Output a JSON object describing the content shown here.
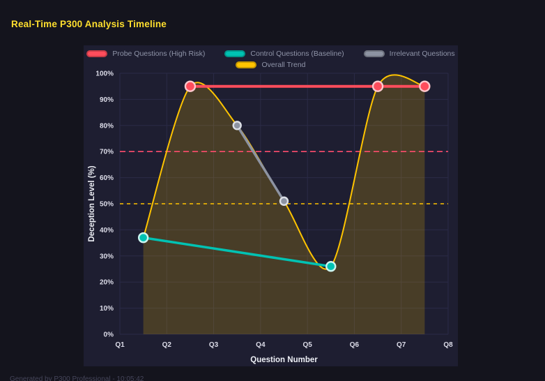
{
  "page": {
    "title": "Real-Time P300 Analysis Timeline",
    "footer": "Generated by P300 Professional - 10:05:42"
  },
  "chart_data": {
    "type": "line",
    "xlabel": "Question Number",
    "ylabel": "Deception Level (%)",
    "x_ticks": [
      "Q1",
      "Q2",
      "Q3",
      "Q4",
      "Q5",
      "Q6",
      "Q7",
      "Q8"
    ],
    "y_ticks": [
      "0%",
      "10%",
      "20%",
      "30%",
      "40%",
      "50%",
      "60%",
      "70%",
      "80%",
      "90%",
      "100%"
    ],
    "xlim": [
      1,
      8
    ],
    "ylim": [
      0,
      100
    ],
    "grid": true,
    "legend_position": "top",
    "series": [
      {
        "name": "Probe Questions (High Risk)",
        "color": "#ff4d5c",
        "marker_stroke": "#ffc9cd",
        "x": [
          2.5,
          6.5,
          7.5
        ],
        "y": [
          95,
          95,
          95
        ],
        "line_width": 4,
        "marker_size": 7,
        "smooth": false
      },
      {
        "name": "Control Questions (Baseline)",
        "color": "#00c2b3",
        "marker_stroke": "#cdf5f0",
        "x": [
          1.5,
          5.5
        ],
        "y": [
          37,
          26
        ],
        "line_width": 3.5,
        "marker_size": 6.5,
        "smooth": false
      },
      {
        "name": "Irrelevant Questions",
        "color": "#8d93a2",
        "marker_stroke": "#dcdfe6",
        "x": [
          3.5,
          4.5
        ],
        "y": [
          80,
          51
        ],
        "line_width": 3.5,
        "marker_size": 5.5,
        "smooth": false
      },
      {
        "name": "Overall Trend",
        "color": "#ffc400",
        "area_fill": "rgba(255,196,0,0.19)",
        "x": [
          1.5,
          2.5,
          3.5,
          4.5,
          5.5,
          6.5,
          7.5
        ],
        "y": [
          37,
          95,
          80,
          51,
          26,
          95,
          95
        ],
        "line_width": 2,
        "marker_size": 0,
        "smooth": true
      }
    ],
    "reference_lines": [
      {
        "y": 70,
        "color": "#ff4d6d",
        "dash": "8 5",
        "width": 1.7
      },
      {
        "y": 50,
        "color": "#ffc400",
        "dash": "5 5",
        "width": 1.5
      }
    ]
  }
}
